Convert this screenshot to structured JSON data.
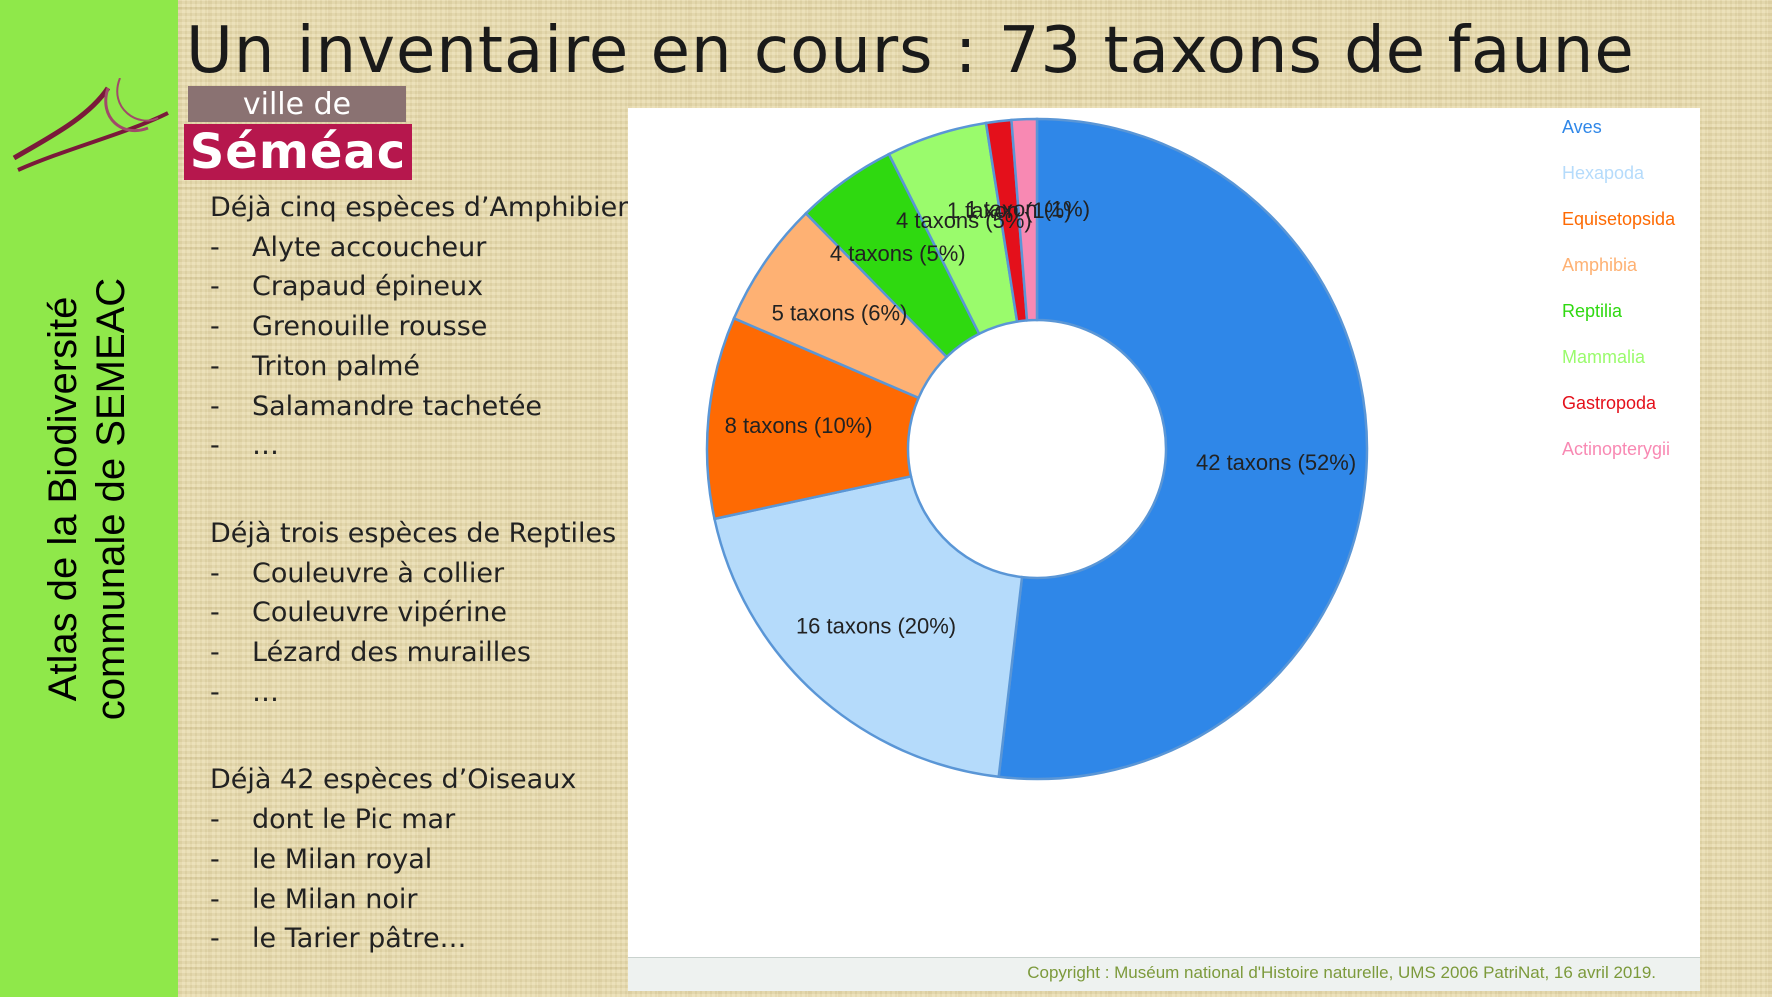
{
  "title": "Un inventaire en cours : 73 taxons de faune",
  "side_title": [
    "Atlas de la Biodiversité",
    "communale de SEMEAC"
  ],
  "logo": {
    "line1": "ville de",
    "line2": "Séméac"
  },
  "sections": [
    {
      "heading": "Déjà cinq espèces d’Amphibiens",
      "items": [
        "Alyte accoucheur",
        "Crapaud épineux",
        "Grenouille rousse",
        "Triton palmé",
        "Salamandre tachetée",
        "…"
      ]
    },
    {
      "heading": "Déjà trois espèces de Reptiles",
      "items": [
        "Couleuvre à collier",
        "Couleuvre vipérine",
        "Lézard des murailles",
        "…"
      ]
    },
    {
      "heading": "Déjà 42 espèces d’Oiseaux",
      "items": [
        "dont le Pic mar",
        "le Milan royal",
        "le Milan noir",
        "le Tarier pâtre…"
      ]
    }
  ],
  "bullet": "-",
  "copyright": "Copyright : Muséum national d'Histoire naturelle, UMS 2006 PatriNat, 16 avril 2019.",
  "colors": {
    "side_band": "#8fe84a",
    "badge_top": "#8a7272",
    "badge_main": "#b6174d",
    "slice_border": "#5a96d6"
  },
  "chart_data": {
    "type": "pie",
    "donut": true,
    "legend_position": "right",
    "series": [
      {
        "name": "Aves",
        "value": 42,
        "label": "42 taxons (52%)",
        "color": "#2f87e8"
      },
      {
        "name": "Hexapoda",
        "value": 16,
        "label": "16 taxons (20%)",
        "color": "#b5dbfb"
      },
      {
        "name": "Equisetopsida",
        "value": 8,
        "label": "8 taxons (10%)",
        "color": "#fe6a03"
      },
      {
        "name": "Amphibia",
        "value": 5,
        "label": "5 taxons (6%)",
        "color": "#feb173"
      },
      {
        "name": "Reptilia",
        "value": 4,
        "label": "4 taxons (5%)",
        "color": "#2fd910"
      },
      {
        "name": "Mammalia",
        "value": 4,
        "label": "4 taxons (5%)",
        "color": "#9afb6c"
      },
      {
        "name": "Gastropoda",
        "value": 1,
        "label": "1 taxon (1%)",
        "color": "#e4101b"
      },
      {
        "name": "Actinopterygii",
        "value": 1,
        "label": "1 taxon (1%)",
        "color": "#f889b3"
      }
    ]
  }
}
